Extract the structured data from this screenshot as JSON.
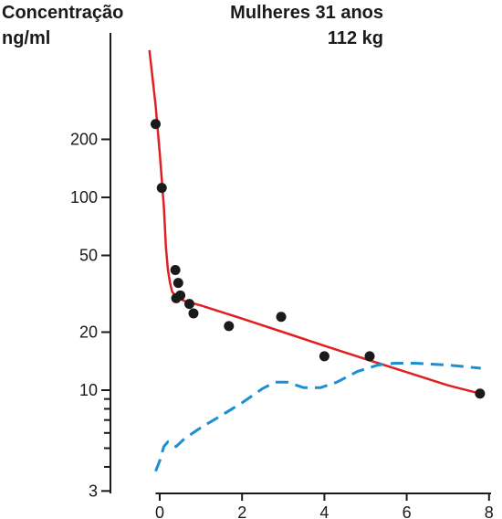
{
  "chart_data": {
    "type": "scatter",
    "title": "Mulheres 31 anos",
    "subtitle": "112 kg",
    "ylabel": [
      "Concentração",
      "ng/ml"
    ],
    "xlabel": "",
    "yscale": "log",
    "ylim": [
      3,
      600
    ],
    "xlim": [
      -0.1,
      8.1
    ],
    "y_ticks": [
      3,
      10,
      20,
      50,
      100,
      200
    ],
    "y_minor_ticks": [
      4,
      5,
      6,
      7,
      8,
      9
    ],
    "x_ticks": [
      0,
      2,
      4,
      6,
      8
    ],
    "grid": false,
    "legend": "none",
    "colors": {
      "points": "#1a1a1a",
      "fit": "#e02020",
      "dashed": "#1a8fd4",
      "axis": "#1a1a1a"
    },
    "series": [
      {
        "kind": "points",
        "x": [
          -0.1,
          0.05,
          0.38,
          0.45,
          0.5,
          0.4,
          0.72,
          0.82,
          1.68,
          2.95,
          4.0,
          5.1,
          7.78
        ],
        "y": [
          240,
          112,
          42,
          36,
          31,
          30,
          28,
          25,
          21.5,
          24,
          15,
          15,
          9.6
        ]
      },
      {
        "kind": "fit-line",
        "style": "solid",
        "x": [
          -0.25,
          -0.1,
          0.0,
          0.1,
          0.15,
          0.2,
          0.25,
          0.3,
          0.4,
          0.6,
          1.0,
          2.0,
          3.0,
          4.0,
          5.0,
          6.0,
          7.0,
          7.78
        ],
        "y": [
          580,
          300,
          170,
          90,
          55,
          42,
          36,
          32.5,
          30.5,
          29,
          27.5,
          23.5,
          20,
          17,
          14.5,
          12.4,
          10.6,
          9.6
        ]
      },
      {
        "kind": "curve",
        "style": "dashed",
        "x": [
          -0.1,
          0.0,
          0.1,
          0.2,
          0.3,
          0.4,
          0.6,
          1.0,
          1.5,
          2.0,
          2.5,
          2.8,
          3.1,
          3.5,
          3.9,
          4.3,
          4.8,
          5.3,
          5.7,
          6.2,
          7.0,
          7.8
        ],
        "y": [
          3.8,
          4.3,
          5.1,
          5.4,
          5.2,
          5.1,
          5.6,
          6.4,
          7.4,
          8.6,
          10.2,
          11,
          11,
          10.3,
          10.3,
          11,
          12.5,
          13.5,
          13.8,
          13.8,
          13.5,
          13
        ]
      }
    ]
  }
}
